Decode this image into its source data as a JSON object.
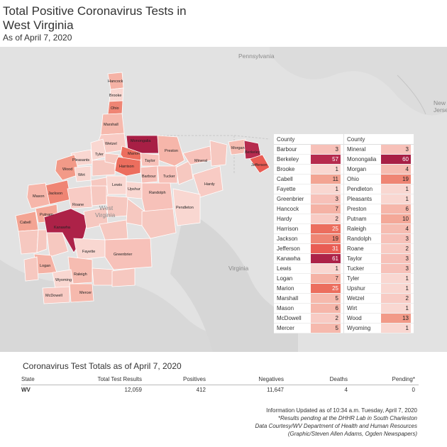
{
  "title": "Total Positive Coronavirus Tests in West Virginia",
  "subtitle": "As of April 7, 2020",
  "map": {
    "place_labels": {
      "pennsylvania": "Pennsylvania",
      "new_jersey_1": "New",
      "new_jersey_2": "Jerse",
      "west_virginia_1": "West",
      "west_virginia_2": "Virginia",
      "virginia": "Virginia"
    },
    "county_labels": {
      "hancock": "Hancock",
      "brooke": "Brooke",
      "ohio": "Ohio",
      "marshall": "Marshall",
      "wetzel": "Wetzel",
      "tyler": "Tyler",
      "pleasants": "Pleasants",
      "wood": "Wood",
      "wirt": "Wirt",
      "jackson": "Jackson",
      "mason": "Mason",
      "roane": "Roane",
      "putnam": "Putnam",
      "cabell": "Cabell",
      "kanawha": "Kanawha",
      "logan": "Logan",
      "wyoming": "Wyoming",
      "raleigh": "Raleigh",
      "mcdowell": "McDowell",
      "mercer": "Mercer",
      "fayette": "Fayette",
      "greenbrier": "Greenbrier",
      "monongalia": "Monongalia",
      "marion": "Marion",
      "preston": "Preston",
      "harrison": "Harrison",
      "taylor": "Taylor",
      "barbour": "Barbour",
      "tucker": "Tucker",
      "lewis": "Lewis",
      "upshur": "Upshur",
      "randolph": "Randolph",
      "pendleton": "Pendleton",
      "hardy": "Hardy",
      "mineral": "Mineral",
      "morgan": "Morgan",
      "berkeley": "Berkeley",
      "jefferson": "Jefferson"
    }
  },
  "table_header": "County",
  "counties_left": [
    {
      "name": "Barbour",
      "value": "3",
      "color": "#f7c1b9"
    },
    {
      "name": "Berkeley",
      "value": "57",
      "color": "#b62b4e"
    },
    {
      "name": "Brooke",
      "value": "1",
      "color": "#f9d7d1"
    },
    {
      "name": "Cabell",
      "value": "11",
      "color": "#f3a493"
    },
    {
      "name": "Fayette",
      "value": "1",
      "color": "#f9d7d1"
    },
    {
      "name": "Greenbrier",
      "value": "3",
      "color": "#f7c1b9"
    },
    {
      "name": "Hancock",
      "value": "7",
      "color": "#f5b2a5"
    },
    {
      "name": "Hardy",
      "value": "2",
      "color": "#f8cbc4"
    },
    {
      "name": "Harrison",
      "value": "25",
      "color": "#ec6e5e"
    },
    {
      "name": "Jackson",
      "value": "19",
      "color": "#ef8574"
    },
    {
      "name": "Jefferson",
      "value": "31",
      "color": "#e95c53"
    },
    {
      "name": "Kanawha",
      "value": "61",
      "color": "#ad2248"
    },
    {
      "name": "Lewis",
      "value": "1",
      "color": "#f9d7d1"
    },
    {
      "name": "Logan",
      "value": "7",
      "color": "#f5b2a5"
    },
    {
      "name": "Marion",
      "value": "25",
      "color": "#ec6e5e"
    },
    {
      "name": "Marshall",
      "value": "5",
      "color": "#f6b9ad"
    },
    {
      "name": "Mason",
      "value": "6",
      "color": "#f6b6aa"
    },
    {
      "name": "McDowell",
      "value": "2",
      "color": "#f8cbc4"
    },
    {
      "name": "Mercer",
      "value": "5",
      "color": "#f6b9ad"
    }
  ],
  "counties_right": [
    {
      "name": "Mineral",
      "value": "3",
      "color": "#f7c1b9"
    },
    {
      "name": "Monongalia",
      "value": "60",
      "color": "#a81f45"
    },
    {
      "name": "Morgan",
      "value": "4",
      "color": "#f6bcb1"
    },
    {
      "name": "Ohio",
      "value": "19",
      "color": "#ef8574"
    },
    {
      "name": "Pendleton",
      "value": "1",
      "color": "#f9d7d1"
    },
    {
      "name": "Pleasants",
      "value": "1",
      "color": "#f9d7d1"
    },
    {
      "name": "Preston",
      "value": "6",
      "color": "#f6b6aa"
    },
    {
      "name": "Putnam",
      "value": "10",
      "color": "#f4a898"
    },
    {
      "name": "Raleigh",
      "value": "4",
      "color": "#f6bcb1"
    },
    {
      "name": "Randolph",
      "value": "3",
      "color": "#f7c1b9"
    },
    {
      "name": "Roane",
      "value": "2",
      "color": "#f8cbc4"
    },
    {
      "name": "Taylor",
      "value": "3",
      "color": "#f7c1b9"
    },
    {
      "name": "Tucker",
      "value": "3",
      "color": "#f7c1b9"
    },
    {
      "name": "Tyler",
      "value": "1",
      "color": "#f9d7d1"
    },
    {
      "name": "Upshur",
      "value": "1",
      "color": "#f9d7d1"
    },
    {
      "name": "Wetzel",
      "value": "2",
      "color": "#f8cbc4"
    },
    {
      "name": "Wirt",
      "value": "1",
      "color": "#f9d7d1"
    },
    {
      "name": "Wood",
      "value": "13",
      "color": "#f29a88"
    },
    {
      "name": "Wyoming",
      "value": "1",
      "color": "#f9d7d1"
    }
  ],
  "totals": {
    "title": "Coronavirus Test Totals as of April 7, 2020",
    "headers": [
      "State",
      "Total Test Results",
      "Positives",
      "Negatives",
      "Deaths",
      "Pending*"
    ],
    "row": [
      "WV",
      "12,059",
      "412",
      "11,647",
      "4",
      "0"
    ]
  },
  "notes": {
    "line1": "Information Updated as of 10:34 a.m. Tuesday, April 7, 2020",
    "line2": "*Results pending at the DHHR Lab in South Charleston",
    "line3": "Data Courtesy/WV Department of Health and Human Resources",
    "line4": "(Graphic/Steven Allen Adams, Ogden Newspapers)"
  }
}
